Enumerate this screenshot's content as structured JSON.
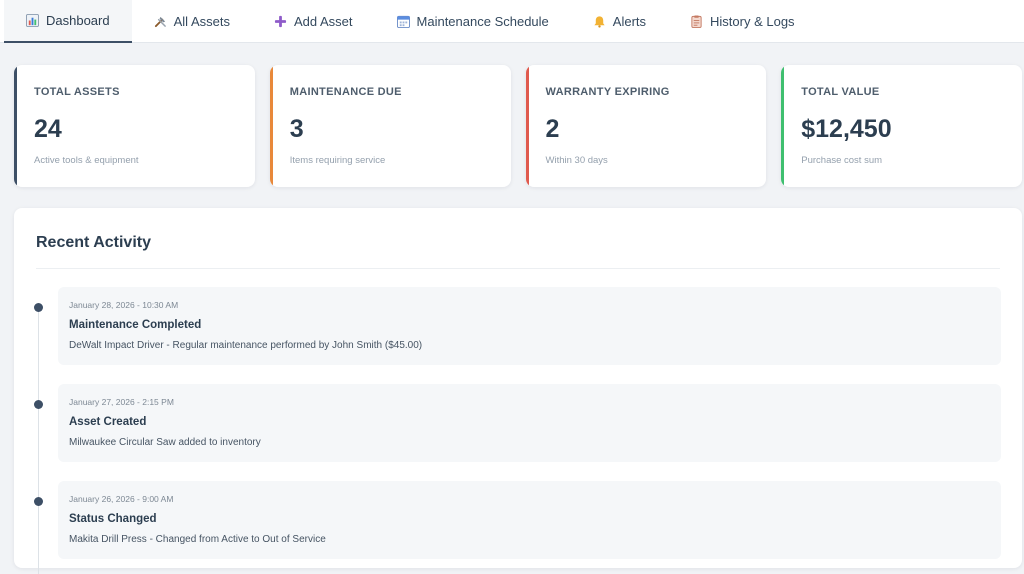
{
  "tabs": [
    {
      "label": "Dashboard",
      "icon": "bar-chart-icon"
    },
    {
      "label": "All Assets",
      "icon": "tools-icon"
    },
    {
      "label": "Add Asset",
      "icon": "plus-icon"
    },
    {
      "label": "Maintenance Schedule",
      "icon": "calendar-icon"
    },
    {
      "label": "Alerts",
      "icon": "bell-icon"
    },
    {
      "label": "History & Logs",
      "icon": "clipboard-icon"
    }
  ],
  "stats": [
    {
      "label": "TOTAL ASSETS",
      "value": "24",
      "sub": "Active tools & equipment",
      "accent": "#3d4f66"
    },
    {
      "label": "MAINTENANCE DUE",
      "value": "3",
      "sub": "Items requiring service",
      "accent": "#e8883a"
    },
    {
      "label": "WARRANTY EXPIRING",
      "value": "2",
      "sub": "Within 30 days",
      "accent": "#e05a4e"
    },
    {
      "label": "TOTAL VALUE",
      "value": "$12,450",
      "sub": "Purchase cost sum",
      "accent": "#3fbf6f"
    }
  ],
  "activity": {
    "title": "Recent Activity",
    "items": [
      {
        "time": "January 28, 2026 - 10:30 AM",
        "title": "Maintenance Completed",
        "desc": "DeWalt Impact Driver - Regular maintenance performed by John Smith ($45.00)"
      },
      {
        "time": "January 27, 2026 - 2:15 PM",
        "title": "Asset Created",
        "desc": "Milwaukee Circular Saw added to inventory"
      },
      {
        "time": "January 26, 2026 - 9:00 AM",
        "title": "Status Changed",
        "desc": "Makita Drill Press - Changed from Active to Out of Service"
      }
    ]
  }
}
